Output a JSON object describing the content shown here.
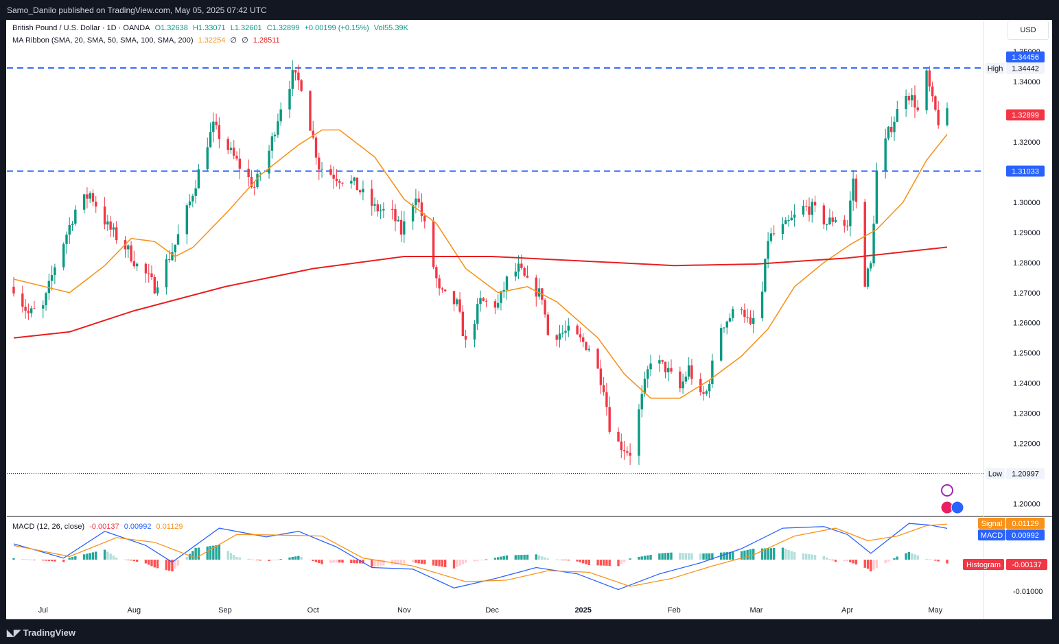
{
  "header": {
    "publisher_line": "Samo_Danilo published on TradingView.com, May 05, 2025 07:42 UTC"
  },
  "footer": {
    "brand": "TradingView"
  },
  "legend": {
    "symbol": "British Pound / U.S. Dollar · 1D · OANDA",
    "open": "O1.32638",
    "high": "H1.33071",
    "low": "L1.32601",
    "close": "C1.32899",
    "change": "+0.00199 (+0.15%)",
    "vol": "Vol55.39K",
    "ma_label": "MA Ribbon (SMA, 20, SMA, 50, SMA, 100, SMA, 200)",
    "ma_values": [
      "1.32254",
      "∅",
      "∅",
      "1.28511"
    ],
    "macd_label": "MACD (12, 26, close)",
    "macd_values": [
      "-0.00137",
      "0.00992",
      "0.01129"
    ]
  },
  "currency_button": "USD",
  "colors": {
    "up": "#089981",
    "down": "#f23645",
    "ma20": "#f7931a",
    "ma200": "#e91e1e",
    "level": "#2962ff",
    "signal": "#f7931a",
    "macd": "#2962ff"
  },
  "chart_data": [
    {
      "type": "candlestick",
      "title": "British Pound / U.S. Dollar · 1D · OANDA",
      "ylim": [
        1.196,
        1.353
      ],
      "x_tick_labels": [
        "Jul",
        "Aug",
        "Sep",
        "Oct",
        "Nov",
        "Dec",
        "2025",
        "Feb",
        "Mar",
        "Apr",
        "May"
      ],
      "y_tick_labels": [
        "1.35000",
        "1.34000",
        "1.32000",
        "1.30000",
        "1.29000",
        "1.28000",
        "1.27000",
        "1.26000",
        "1.25000",
        "1.24000",
        "1.23000",
        "1.22000",
        "1.20000"
      ],
      "last_price": "1.32899",
      "horizontal_levels": [
        {
          "value": 1.34456,
          "label": "1.34456",
          "style": "dashed"
        },
        {
          "value": 1.31033,
          "label": "1.31033",
          "style": "dashed"
        }
      ],
      "high_marker": {
        "label": "High",
        "value": "1.34442"
      },
      "low_marker": {
        "label": "Low",
        "value": "1.20997"
      },
      "anchors": [
        [
          "2024-06-21",
          1.272
        ],
        [
          "2024-06-26",
          1.263
        ],
        [
          "2024-07-01",
          1.265
        ],
        [
          "2024-07-05",
          1.279
        ],
        [
          "2024-07-12",
          1.2975
        ],
        [
          "2024-07-17",
          1.303
        ],
        [
          "2024-07-23",
          1.292
        ],
        [
          "2024-07-30",
          1.284
        ],
        [
          "2024-08-02",
          1.279
        ],
        [
          "2024-08-05",
          1.276
        ],
        [
          "2024-08-08",
          1.272
        ],
        [
          "2024-08-15",
          1.286
        ],
        [
          "2024-08-20",
          1.3
        ],
        [
          "2024-08-26",
          1.32
        ],
        [
          "2024-08-28",
          1.325
        ],
        [
          "2024-09-06",
          1.312
        ],
        [
          "2024-09-11",
          1.305
        ],
        [
          "2024-09-16",
          1.317
        ],
        [
          "2024-09-20",
          1.332
        ],
        [
          "2024-09-24",
          1.342
        ],
        [
          "2024-09-27",
          1.339
        ],
        [
          "2024-10-03",
          1.312
        ],
        [
          "2024-10-08",
          1.309
        ],
        [
          "2024-10-15",
          1.306
        ],
        [
          "2024-10-22",
          1.298
        ],
        [
          "2024-10-28",
          1.296
        ],
        [
          "2024-10-31",
          1.29
        ],
        [
          "2024-11-05",
          1.303
        ],
        [
          "2024-11-08",
          1.292
        ],
        [
          "2024-11-13",
          1.27
        ],
        [
          "2024-11-19",
          1.266
        ],
        [
          "2024-11-22",
          1.253
        ],
        [
          "2024-11-27",
          1.267
        ],
        [
          "2024-12-03",
          1.266
        ],
        [
          "2024-12-06",
          1.274
        ],
        [
          "2024-12-10",
          1.278
        ],
        [
          "2024-12-13",
          1.273
        ],
        [
          "2024-12-18",
          1.269
        ],
        [
          "2024-12-20",
          1.256
        ],
        [
          "2024-12-27",
          1.257
        ],
        [
          "2025-01-03",
          1.252
        ],
        [
          "2025-01-08",
          1.239
        ],
        [
          "2025-01-10",
          1.226
        ],
        [
          "2025-01-13",
          1.22
        ],
        [
          "2025-01-17",
          1.217
        ],
        [
          "2025-01-21",
          1.235
        ],
        [
          "2025-01-24",
          1.248
        ],
        [
          "2025-01-29",
          1.245
        ],
        [
          "2025-02-03",
          1.238
        ],
        [
          "2025-02-06",
          1.245
        ],
        [
          "2025-02-10",
          1.235
        ],
        [
          "2025-02-12",
          1.237
        ],
        [
          "2025-02-17",
          1.259
        ],
        [
          "2025-02-24",
          1.266
        ],
        [
          "2025-02-27",
          1.258
        ],
        [
          "2025-03-03",
          1.27
        ],
        [
          "2025-03-05",
          1.288
        ],
        [
          "2025-03-11",
          1.292
        ],
        [
          "2025-03-17",
          1.298
        ],
        [
          "2025-03-20",
          1.298
        ],
        [
          "2025-03-25",
          1.293
        ],
        [
          "2025-03-28",
          1.295
        ],
        [
          "2025-04-01",
          1.292
        ],
        [
          "2025-04-03",
          1.308
        ],
        [
          "2025-04-07",
          1.274
        ],
        [
          "2025-04-09",
          1.279
        ],
        [
          "2025-04-11",
          1.31
        ],
        [
          "2025-04-15",
          1.323
        ],
        [
          "2025-04-21",
          1.337
        ],
        [
          "2025-04-24",
          1.333
        ],
        [
          "2025-04-25",
          1.33
        ],
        [
          "2025-04-28",
          1.342
        ],
        [
          "2025-04-30",
          1.333
        ],
        [
          "2025-05-02",
          1.327
        ],
        [
          "2025-05-05",
          1.32899
        ]
      ],
      "ma_lines": [
        {
          "name": "SMA 20",
          "color": "#f7931a",
          "points": [
            [
              "2024-06-21",
              1.2745
            ],
            [
              "2024-07-10",
              1.27
            ],
            [
              "2024-07-22",
              1.279
            ],
            [
              "2024-07-31",
              1.288
            ],
            [
              "2024-08-08",
              1.287
            ],
            [
              "2024-08-15",
              1.282
            ],
            [
              "2024-08-21",
              1.285
            ],
            [
              "2024-09-02",
              1.297
            ],
            [
              "2024-09-13",
              1.309
            ],
            [
              "2024-09-26",
              1.319
            ],
            [
              "2024-10-04",
              1.324
            ],
            [
              "2024-10-10",
              1.324
            ],
            [
              "2024-10-22",
              1.315
            ],
            [
              "2024-11-01",
              1.301
            ],
            [
              "2024-11-12",
              1.293
            ],
            [
              "2024-11-22",
              1.278
            ],
            [
              "2024-12-03",
              1.27
            ],
            [
              "2024-12-13",
              1.272
            ],
            [
              "2024-12-23",
              1.267
            ],
            [
              "2025-01-06",
              1.255
            ],
            [
              "2025-01-15",
              1.243
            ],
            [
              "2025-01-24",
              1.235
            ],
            [
              "2025-02-03",
              1.235
            ],
            [
              "2025-02-13",
              1.241
            ],
            [
              "2025-02-24",
              1.249
            ],
            [
              "2025-03-05",
              1.258
            ],
            [
              "2025-03-14",
              1.272
            ],
            [
              "2025-03-24",
              1.28
            ],
            [
              "2025-04-02",
              1.286
            ],
            [
              "2025-04-11",
              1.291
            ],
            [
              "2025-04-20",
              1.3
            ],
            [
              "2025-04-28",
              1.314
            ],
            [
              "2025-05-05",
              1.32254
            ]
          ]
        },
        {
          "name": "SMA 200",
          "color": "#e91e1e",
          "points": [
            [
              "2024-06-21",
              1.255
            ],
            [
              "2024-07-10",
              1.257
            ],
            [
              "2024-08-01",
              1.264
            ],
            [
              "2024-09-01",
              1.272
            ],
            [
              "2024-10-01",
              1.278
            ],
            [
              "2024-11-01",
              1.282
            ],
            [
              "2024-12-01",
              1.282
            ],
            [
              "2025-01-01",
              1.2805
            ],
            [
              "2025-02-01",
              1.279
            ],
            [
              "2025-03-01",
              1.2795
            ],
            [
              "2025-04-01",
              1.2815
            ],
            [
              "2025-05-05",
              1.28511
            ]
          ]
        }
      ]
    },
    {
      "type": "line",
      "title": "MACD (12, 26, close)",
      "ylim": [
        -0.0135,
        0.0135
      ],
      "y_tick_labels": [
        "-0.01000"
      ],
      "series": [
        {
          "name": "MACD",
          "color": "#2962ff",
          "last": "0.00992",
          "points": [
            [
              "2024-06-21",
              0.005
            ],
            [
              "2024-07-08",
              0.0005
            ],
            [
              "2024-07-22",
              0.009
            ],
            [
              "2024-08-05",
              0.0045
            ],
            [
              "2024-08-14",
              -0.0008
            ],
            [
              "2024-08-30",
              0.01
            ],
            [
              "2024-09-15",
              0.0072
            ],
            [
              "2024-09-26",
              0.009
            ],
            [
              "2024-10-09",
              0.004
            ],
            [
              "2024-10-21",
              -0.0025
            ],
            [
              "2024-11-04",
              -0.003
            ],
            [
              "2024-11-18",
              -0.009
            ],
            [
              "2024-12-02",
              -0.006
            ],
            [
              "2024-12-16",
              -0.0025
            ],
            [
              "2024-12-30",
              -0.0045
            ],
            [
              "2025-01-13",
              -0.0095
            ],
            [
              "2025-01-27",
              -0.0045
            ],
            [
              "2025-02-10",
              -0.001
            ],
            [
              "2025-02-24",
              0.0035
            ],
            [
              "2025-03-10",
              0.01
            ],
            [
              "2025-03-24",
              0.0105
            ],
            [
              "2025-04-01",
              0.008
            ],
            [
              "2025-04-09",
              0.002
            ],
            [
              "2025-04-22",
              0.0115
            ],
            [
              "2025-04-29",
              0.011
            ],
            [
              "2025-05-05",
              0.00992
            ]
          ]
        },
        {
          "name": "Signal",
          "color": "#f7931a",
          "last": "0.01129",
          "points": [
            [
              "2024-06-21",
              0.0045
            ],
            [
              "2024-07-10",
              0.001
            ],
            [
              "2024-07-26",
              0.007
            ],
            [
              "2024-08-08",
              0.0055
            ],
            [
              "2024-08-22",
              0.0005
            ],
            [
              "2024-09-05",
              0.008
            ],
            [
              "2024-09-20",
              0.0078
            ],
            [
              "2024-10-04",
              0.0075
            ],
            [
              "2024-10-18",
              0.0005
            ],
            [
              "2024-11-04",
              -0.002
            ],
            [
              "2024-11-22",
              -0.007
            ],
            [
              "2024-12-06",
              -0.0065
            ],
            [
              "2024-12-20",
              -0.0035
            ],
            [
              "2025-01-03",
              -0.004
            ],
            [
              "2025-01-17",
              -0.0085
            ],
            [
              "2025-01-31",
              -0.006
            ],
            [
              "2025-02-14",
              -0.002
            ],
            [
              "2025-02-28",
              0.0015
            ],
            [
              "2025-03-14",
              0.0075
            ],
            [
              "2025-03-28",
              0.01
            ],
            [
              "2025-04-08",
              0.006
            ],
            [
              "2025-04-18",
              0.0075
            ],
            [
              "2025-04-28",
              0.0108
            ],
            [
              "2025-05-05",
              0.01129
            ]
          ]
        }
      ],
      "histogram": {
        "name": "Histogram",
        "last": "-0.00137"
      }
    }
  ],
  "price_axis": {
    "level_labels": [
      "1.34456",
      "1.31033"
    ],
    "high_label": "High",
    "high_value": "1.34442",
    "low_label": "Low",
    "low_value": "1.20997",
    "last_price_label": "1.32899"
  },
  "macd_axis": {
    "signal_label": "Signal",
    "signal_value": "0.01129",
    "macd_label": "MACD",
    "macd_value": "0.00992",
    "hist_label": "Histogram",
    "hist_value": "-0.00137"
  }
}
